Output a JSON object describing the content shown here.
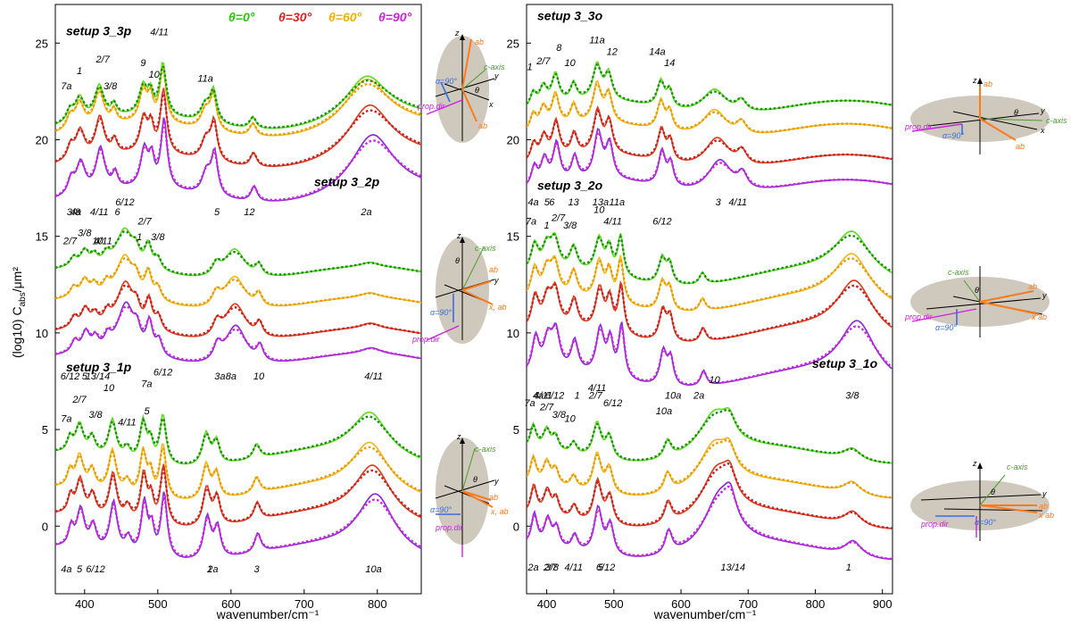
{
  "legend": [
    {
      "label": "θ=0°",
      "color": "#22cc00"
    },
    {
      "label": "θ=30°",
      "color": "#e02020"
    },
    {
      "label": "θ=60°",
      "color": "#f0b000"
    },
    {
      "label": "θ=90°",
      "color": "#cc22dd"
    }
  ],
  "chart_data": [
    {
      "type": "line",
      "panel": "left",
      "xlabel": "wavenumber/cm⁻¹",
      "ylabel": "(log10) C",
      "ylabel_sub": "abs",
      "ylabel_unit": "/μm²",
      "xlim": [
        360,
        860
      ],
      "ylim": [
        -3.5,
        27
      ],
      "xticks": [
        400,
        500,
        600,
        700,
        800
      ],
      "xtick_labels": [
        "400",
        "500",
        "600",
        "700",
        "800"
      ],
      "yticks": [
        0,
        5,
        10,
        15,
        20,
        25
      ],
      "ytick_labels": [
        "0",
        "5",
        "10",
        "15",
        "20",
        "25"
      ],
      "groups": [
        {
          "title": "setup 3_3p",
          "offsets": [
            17,
            18.8,
            20.4,
            20.8
          ],
          "peaks": [
            [
              380,
              0.8,
              5
            ],
            [
              393,
              1.6,
              7
            ],
            [
              420,
              2.2,
              7
            ],
            [
              440,
              0.8,
              4
            ],
            [
              480,
              2,
              6
            ],
            [
              490,
              1.4,
              4
            ],
            [
              507,
              3.6,
              5
            ],
            [
              565,
              1.2,
              7
            ],
            [
              576,
              2.2,
              5
            ],
            [
              630,
              0.8,
              5
            ],
            [
              785,
              3,
              35
            ]
          ],
          "peak_labels": [
            "7a",
            "1",
            "2/7",
            "3/8",
            "9",
            "10",
            "4/11",
            "11a",
            "5",
            "12",
            "2a",
            "3/8",
            "4a",
            "4/11",
            "6"
          ]
        },
        {
          "title": "setup 3_2p",
          "offsets": [
            8.5,
            9.8,
            11.4,
            13
          ],
          "peaks": [
            [
              385,
              0.6,
              5
            ],
            [
              400,
              1,
              6
            ],
            [
              413,
              0.6,
              5
            ],
            [
              430,
              0.6,
              5
            ],
            [
              455,
              2.6,
              14
            ],
            [
              470,
              0.8,
              5
            ],
            [
              487,
              1.6,
              5
            ],
            [
              500,
              0.8,
              5
            ],
            [
              580,
              0.8,
              6
            ],
            [
              605,
              2.2,
              18
            ],
            [
              638,
              0.8,
              5
            ],
            [
              790,
              0.3,
              15
            ]
          ],
          "peak_labels": [
            "2/7",
            "3/8",
            "10",
            "4/11",
            "6/12",
            "1",
            "2/7",
            "3/8",
            "3a",
            "8a",
            "10",
            "4/11",
            "6/12",
            "5",
            "13/14"
          ]
        },
        {
          "title": "setup 3_1p",
          "offsets": [
            -1.5,
            0.2,
            1.6,
            3.4
          ],
          "peaks": [
            [
              380,
              1,
              4
            ],
            [
              393,
              2,
              6
            ],
            [
              410,
              1.2,
              5
            ],
            [
              438,
              2.6,
              6
            ],
            [
              458,
              0.8,
              5
            ],
            [
              480,
              2.8,
              5
            ],
            [
              490,
              1.4,
              4
            ],
            [
              507,
              3.4,
              5
            ],
            [
              566,
              2.2,
              6
            ],
            [
              580,
              1.6,
              5
            ],
            [
              635,
              1,
              5
            ],
            [
              790,
              3,
              30
            ]
          ],
          "peak_labels": [
            "7a",
            "2/7",
            "3/8",
            "10",
            "4/11",
            "7a",
            "5",
            "6/12",
            "1",
            "2a",
            "3",
            "10a",
            "4a",
            "5",
            "6/12"
          ]
        }
      ]
    },
    {
      "type": "line",
      "panel": "right",
      "xlabel": "wavenumber/cm⁻¹",
      "ylabel": "",
      "xlim": [
        370,
        915
      ],
      "ylim": [
        -3.5,
        27
      ],
      "xticks": [
        400,
        500,
        600,
        700,
        800,
        900
      ],
      "xtick_labels": [
        "400",
        "500",
        "600",
        "700",
        "800",
        "900"
      ],
      "yticks": [
        0,
        5,
        10,
        15,
        20,
        25
      ],
      "ytick_labels": [
        "0",
        "5",
        "10",
        "15",
        "20",
        "25"
      ],
      "groups": [
        {
          "title": "setup 3_3o",
          "offsets": [
            17.5,
            18.8,
            20.4,
            21.6
          ],
          "peaks": [
            [
              380,
              1,
              5
            ],
            [
              395,
              1.3,
              6
            ],
            [
              413,
              2,
              6
            ],
            [
              440,
              1.2,
              5
            ],
            [
              475,
              2.4,
              7
            ],
            [
              492,
              1.8,
              6
            ],
            [
              570,
              1.8,
              6
            ],
            [
              583,
              1.2,
              5
            ],
            [
              650,
              1.8,
              22
            ],
            [
              690,
              0.8,
              8
            ]
          ],
          "peak_labels": [
            "1",
            "2/7",
            "8",
            "10",
            "11a",
            "12",
            "14a",
            "14",
            "3",
            "4/11",
            "4a",
            "5",
            "6",
            "13",
            "13a"
          ]
        },
        {
          "title": "setup 3_2o",
          "offsets": [
            7.5,
            9.8,
            11.4,
            12.8
          ],
          "peaks": [
            [
              382,
              1.8,
              6
            ],
            [
              400,
              1.6,
              7
            ],
            [
              412,
              2,
              7
            ],
            [
              440,
              1.6,
              6
            ],
            [
              478,
              2.4,
              7
            ],
            [
              493,
              1.8,
              5
            ],
            [
              510,
              2.8,
              5
            ],
            [
              572,
              1.8,
              6
            ],
            [
              583,
              1.4,
              5
            ],
            [
              632,
              0.8,
              5
            ],
            [
              855,
              3,
              32
            ]
          ],
          "peak_labels": [
            "7a",
            "1",
            "2/7",
            "3/8",
            "10",
            "4/11",
            "11a",
            "6/12",
            "10a",
            "2a",
            "3/8",
            "4a",
            "4/11",
            "6/12",
            "1",
            "2/7"
          ]
        },
        {
          "title": "setup 3_1o",
          "offsets": [
            -1.4,
            0.2,
            1.8,
            3.6
          ],
          "peaks": [
            [
              380,
              1.6,
              5
            ],
            [
              400,
              1.4,
              6
            ],
            [
              413,
              1,
              5
            ],
            [
              440,
              0.8,
              5
            ],
            [
              475,
              2.4,
              7
            ],
            [
              493,
              1.6,
              6
            ],
            [
              580,
              1.2,
              6
            ],
            [
              650,
              2.8,
              28
            ],
            [
              672,
              1.2,
              10
            ],
            [
              855,
              0.8,
              15
            ]
          ],
          "peak_labels": [
            "7a",
            "2/7",
            "3/8",
            "10",
            "4/11",
            "6/12",
            "10a",
            "10",
            "13/14",
            "1",
            "2a",
            "2/7",
            "3/8",
            "4/11",
            "5",
            "6/12"
          ]
        }
      ]
    }
  ],
  "diagrams": {
    "labels": {
      "z": "z",
      "y": "y",
      "x": "x",
      "ab": "ab",
      "c_axis": "c-axis",
      "theta": "θ",
      "alpha": "α=90°",
      "prop_dir": "prop.dir",
      "x_ab": "x, ab",
      "x_ab2": "x ab"
    }
  }
}
